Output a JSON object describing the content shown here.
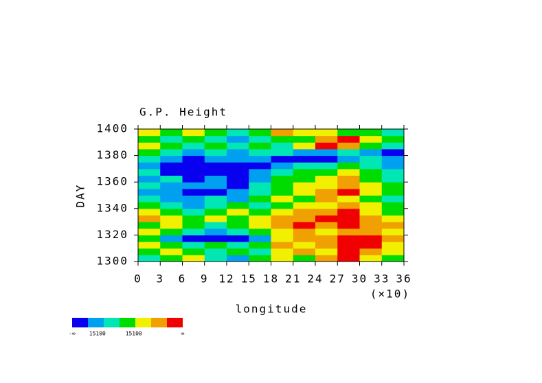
{
  "chart_data": {
    "type": "heatmap",
    "title": "G.P. Height",
    "y_label": "DAY",
    "x_label": "longitude",
    "x_multiplier": "(×10)",
    "xlim": [
      0,
      36
    ],
    "xticks": [
      0,
      3,
      6,
      9,
      12,
      15,
      18,
      21,
      24,
      27,
      30,
      33,
      36
    ],
    "ylim": [
      1300,
      1400
    ],
    "yticks": [
      1300,
      1320,
      1340,
      1360,
      1380,
      1400
    ],
    "xbins": [
      0,
      3,
      6,
      9,
      12,
      15,
      18,
      21,
      24,
      27,
      30,
      33,
      36
    ],
    "ybins": [
      1300,
      1305,
      1310,
      1315,
      1320,
      1325,
      1330,
      1335,
      1340,
      1345,
      1350,
      1355,
      1360,
      1365,
      1370,
      1375,
      1380,
      1385,
      1390,
      1395,
      1400
    ],
    "colors": [
      "#0a00f0",
      "#00a0f0",
      "#00e6b4",
      "#00dc00",
      "#f0f000",
      "#f0a000",
      "#f00000"
    ],
    "colorbar_labels": [
      "-∞",
      "15100",
      "15100",
      "∞"
    ],
    "z": [
      [
        2,
        3,
        4,
        2,
        1,
        3,
        4,
        3,
        5,
        6,
        4,
        3
      ],
      [
        3,
        4,
        3,
        2,
        3,
        2,
        4,
        5,
        4,
        6,
        5,
        4
      ],
      [
        4,
        3,
        2,
        3,
        2,
        3,
        5,
        4,
        5,
        6,
        6,
        4
      ],
      [
        3,
        1,
        0,
        0,
        0,
        1,
        4,
        5,
        5,
        6,
        6,
        5
      ],
      [
        4,
        3,
        2,
        1,
        2,
        3,
        4,
        5,
        4,
        5,
        5,
        4
      ],
      [
        3,
        4,
        3,
        2,
        3,
        4,
        5,
        6,
        5,
        6,
        5,
        5
      ],
      [
        5,
        4,
        3,
        4,
        3,
        4,
        5,
        5,
        6,
        6,
        5,
        4
      ],
      [
        4,
        3,
        2,
        3,
        4,
        3,
        4,
        5,
        5,
        6,
        4,
        3
      ],
      [
        3,
        2,
        1,
        2,
        3,
        2,
        3,
        4,
        4,
        5,
        4,
        3
      ],
      [
        2,
        1,
        1,
        2,
        1,
        3,
        4,
        3,
        5,
        4,
        3,
        2
      ],
      [
        1,
        1,
        0,
        0,
        1,
        2,
        3,
        4,
        5,
        6,
        4,
        3
      ],
      [
        2,
        1,
        1,
        1,
        0,
        2,
        3,
        4,
        4,
        5,
        4,
        3
      ],
      [
        1,
        2,
        0,
        1,
        0,
        1,
        3,
        3,
        4,
        5,
        3,
        2
      ],
      [
        2,
        0,
        0,
        0,
        0,
        1,
        2,
        3,
        3,
        4,
        3,
        2
      ],
      [
        1,
        0,
        0,
        0,
        0,
        0,
        1,
        2,
        2,
        3,
        2,
        1
      ],
      [
        2,
        1,
        0,
        1,
        1,
        1,
        0,
        0,
        0,
        1,
        2,
        1
      ],
      [
        3,
        2,
        1,
        2,
        1,
        2,
        2,
        1,
        1,
        2,
        1,
        0
      ],
      [
        4,
        3,
        2,
        3,
        2,
        3,
        2,
        4,
        6,
        5,
        3,
        2
      ],
      [
        3,
        2,
        3,
        2,
        1,
        2,
        3,
        3,
        5,
        6,
        4,
        3
      ],
      [
        4,
        3,
        4,
        3,
        2,
        3,
        5,
        4,
        4,
        3,
        3,
        2
      ]
    ]
  }
}
